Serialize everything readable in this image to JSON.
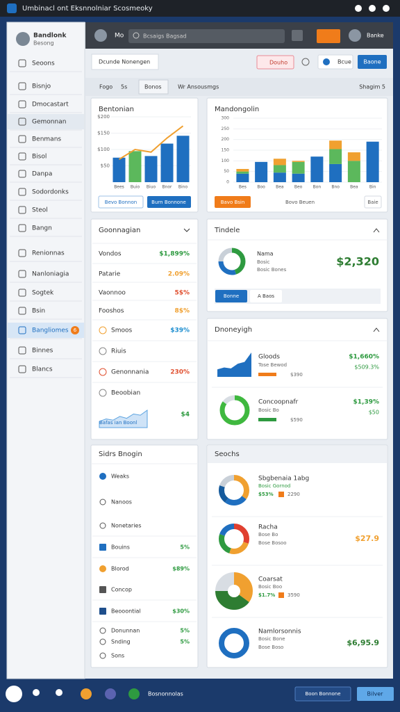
{
  "window": {
    "title": "Umbinacl ont Eksnnolniar Scosmeoky"
  },
  "sidebar": {
    "brand": "Bandlonk",
    "brand_sub": "Besong",
    "items": [
      "Seoons",
      "Bisnjo",
      "Dmocastart",
      "Gemonnan",
      "Benmans",
      "Bisol",
      "Danpa",
      "Sodordonks",
      "Steol",
      "Bangn",
      "Renionnas",
      "Nanloniagia",
      "Sogtek",
      "Bsin",
      "Bangliomes",
      "Binnes",
      "Blancs"
    ],
    "badge": "6"
  },
  "header": {
    "label": "Mo",
    "search": "Bcsaigs Bagsad",
    "user": "Banke"
  },
  "toolbar": {
    "title": "Dcunde Nonengen",
    "buttons": [
      "Douho",
      "Bcue",
      "Baone"
    ]
  },
  "tabs": {
    "items": [
      "Fogo",
      "5s",
      "Bonos",
      "Wr Ansousmgs"
    ],
    "right": "Shagim 5"
  },
  "chart_data": [
    {
      "type": "bar",
      "title": "Bentonian",
      "categories": [
        "Bees",
        "Buio",
        "Biuo",
        "Bnor",
        "Bino"
      ],
      "values": [
        75,
        95,
        80,
        118,
        142
      ],
      "colors": [
        "#1f6fc0",
        "#5cb85c",
        "#1f6fc0",
        "#1f6fc0",
        "#1f6fc0"
      ],
      "line": {
        "values": [
          70,
          100,
          92,
          135,
          172
        ],
        "color": "#f0a030"
      },
      "ylim": [
        0,
        200
      ],
      "yticks": [
        {
          "value": 50,
          "label": "$50"
        },
        {
          "value": 100,
          "label": "$100"
        },
        {
          "value": 150,
          "label": "$150"
        },
        {
          "value": 200,
          "label": "$200"
        }
      ],
      "grid": true,
      "buttons": [
        "Bevo Bonnon",
        "Burn Bonnone"
      ]
    },
    {
      "type": "stacked-bar",
      "title": "Mandongolin",
      "categories": [
        "Bes",
        "Boo",
        "Bea",
        "Beo",
        "Bon",
        "Bno",
        "Bea",
        "Bin"
      ],
      "series": [
        {
          "color": "#1f6fc0",
          "values": [
            40,
            95,
            45,
            40,
            120,
            85,
            0,
            190
          ]
        },
        {
          "color": "#5cb85c",
          "values": [
            10,
            0,
            35,
            55,
            0,
            70,
            100,
            0
          ]
        },
        {
          "color": "#f0a030",
          "values": [
            12,
            0,
            30,
            5,
            0,
            40,
            40,
            0
          ]
        }
      ],
      "ylim": [
        0,
        300
      ],
      "yticks": [
        0,
        50,
        100,
        150,
        200,
        250,
        300
      ],
      "grid": true,
      "buttons": [
        "Bavo Bsin",
        "Bovo Beuen",
        "Baie"
      ]
    }
  ],
  "panel_list": {
    "title": "Goonnagian",
    "rows": [
      {
        "label": "Vondos",
        "value": "$1,899%",
        "color": "#2e9a40"
      },
      {
        "label": "Patarie",
        "value": "2.09%",
        "color": "#f0a030"
      },
      {
        "label": "Vaonnoo",
        "value": "5$%",
        "color": "#e05030"
      },
      {
        "label": "Fooshos",
        "value": "8$%",
        "color": "#f0a030"
      },
      {
        "label": "Smoos",
        "value": "$39%",
        "color": "#1f8fd0"
      },
      {
        "label": "Riuis"
      },
      {
        "label": "Genonnania",
        "value": "230%",
        "color": "#e05030"
      },
      {
        "label": "Beoobian"
      }
    ],
    "spark": {
      "label": "Bafas ian Boonl",
      "value": "$4",
      "values": [
        10,
        14,
        12,
        18,
        15,
        22,
        20,
        28
      ]
    }
  },
  "totals": {
    "title": "Tindele",
    "name": "Nama",
    "sub": "Bosic",
    "meta": "Bosic Bones",
    "value": "$2,320",
    "segments": [
      45,
      30,
      25
    ],
    "colors": [
      "#2e9a40",
      "#1f6fc0",
      "#c9d0d8"
    ],
    "buttons": [
      "Bonne",
      "A Baos"
    ]
  },
  "money": {
    "title": "Dnoneyigh",
    "items": [
      {
        "name": "Gloods",
        "sub": "Tose Bewod",
        "meta": "$390",
        "right": "$1,660%",
        "right2": "$509.3%",
        "area": [
          8,
          10,
          9,
          14,
          16,
          26
        ]
      },
      {
        "name": "Concoopnafr",
        "sub": "Bosic Bo",
        "meta": "$590",
        "right": "$1,39%",
        "right2": "$50",
        "segments": [
          85,
          15
        ],
        "colors": [
          "#3fb83f",
          "#d8dde3"
        ]
      }
    ]
  },
  "side_list": {
    "title": "Sidrs Bnogin",
    "rows": [
      {
        "label": "Weaks"
      },
      {
        "label": "Nanoos"
      },
      {
        "label": "Nonetaries"
      },
      {
        "label": "Bouins",
        "value": "5%"
      },
      {
        "label": "Blorod",
        "value": "$89%"
      },
      {
        "label": "Concop"
      },
      {
        "label": "Beooontial",
        "value": "$30%"
      },
      {
        "label": "Donunnan",
        "value": "5%"
      },
      {
        "label": "Snding",
        "value": "5%"
      },
      {
        "label": "Sons"
      }
    ]
  },
  "searches": {
    "title": "Seochs",
    "items": [
      {
        "title": "Sbgbenaia 1abg",
        "sub": "Bosic Gornod",
        "meta": "$53%",
        "extra": "2290",
        "segments": [
          35,
          25,
          20,
          20
        ],
        "colors": [
          "#f0a030",
          "#1f6fc0",
          "#155a9c",
          "#c9d0d8"
        ]
      },
      {
        "title": "Racha",
        "sub": "Bose Bo",
        "meta": "Bose Bosoo",
        "right": "$27.9",
        "segments": [
          30,
          25,
          25,
          20
        ],
        "colors": [
          "#e04030",
          "#f0a030",
          "#2e9a40",
          "#1f6fc0"
        ]
      },
      {
        "title": "Coarsat",
        "sub": "Bosic Boo",
        "meta": "$1.7%",
        "extra": "3590",
        "segments": [
          35,
          40,
          25
        ],
        "colors": [
          "#f0a030",
          "#2e7d32",
          "#d8dde3"
        ]
      },
      {
        "title": "Namlorsonnis",
        "sub": "Bosic Bone",
        "meta": "Bose Boso",
        "right": "$6,95.9",
        "segments": [
          100
        ],
        "colors": [
          "#1f6fc0"
        ]
      }
    ]
  },
  "bottom": {
    "label": "Bosnonnolas",
    "buttons": [
      "Boon Bonnone",
      "Bilver"
    ]
  }
}
